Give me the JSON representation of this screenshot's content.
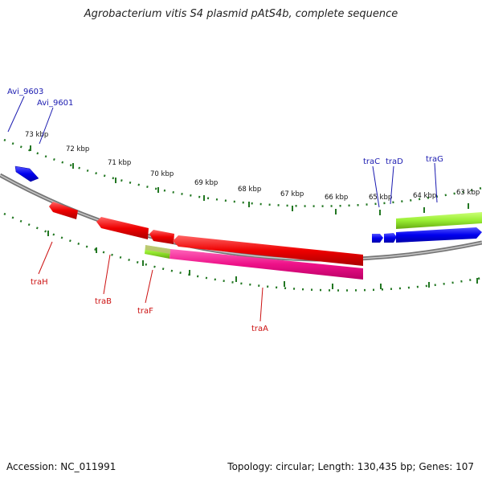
{
  "header": {
    "title": "Agrobacterium vitis S4 plasmid pAtS4b, complete sequence"
  },
  "footer": {
    "accession": "Accession: NC_011991",
    "topology": "Topology: circular; Length: 130,435 bp; Genes: 107"
  },
  "scale": {
    "tick_labels": [
      "73 kbp",
      "72 kbp",
      "71 kbp",
      "70 kbp",
      "69 kbp",
      "68 kbp",
      "67 kbp",
      "66 kbp",
      "65 kbp",
      "64 kbp",
      "63 kbp"
    ]
  },
  "genes": {
    "top_labels": [
      "Avi_9603",
      "Avi_9601",
      "traC",
      "traD",
      "traG"
    ],
    "bottom_labels": [
      "traH",
      "traB",
      "traF",
      "traA"
    ]
  },
  "colors": {
    "forward_gene": "#0000ee",
    "reverse_gene": "#ee0000",
    "trna_like": "#ee1188",
    "highlight": "#99ee33",
    "backbone": "#888888",
    "tick": "#227722",
    "label_top": "#1a1ab0",
    "label_bottom": "#cc1111"
  }
}
